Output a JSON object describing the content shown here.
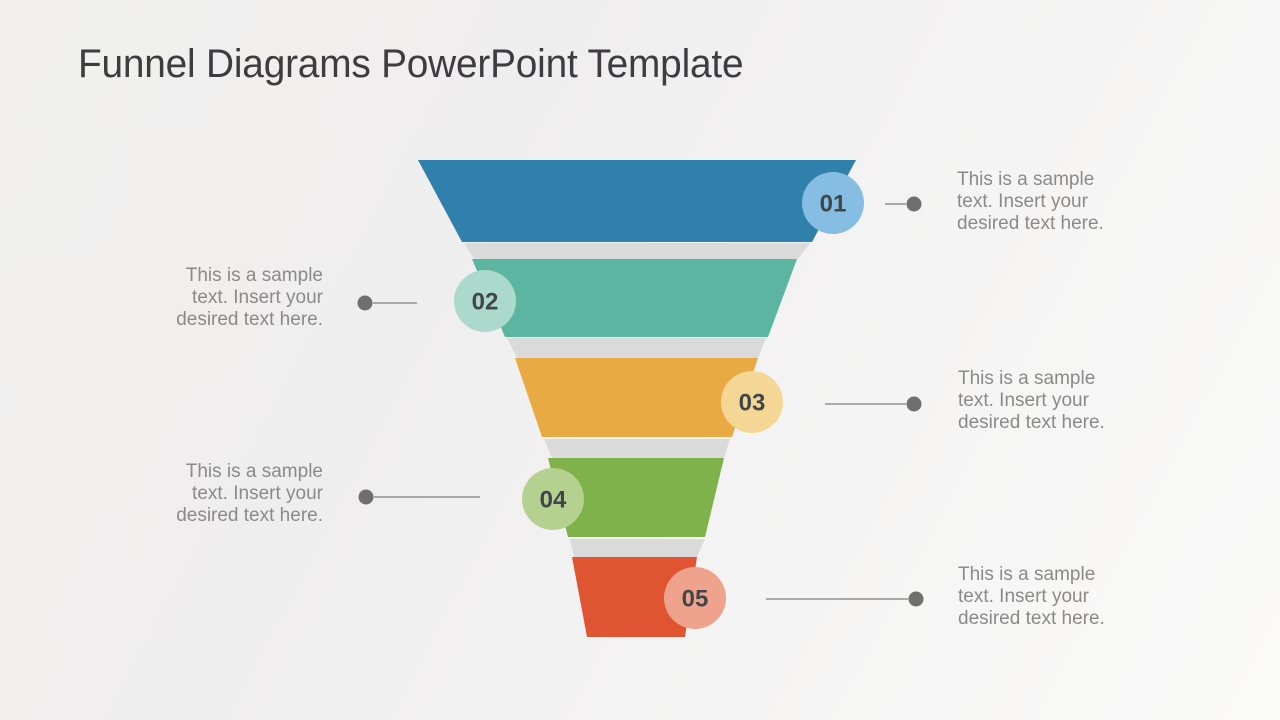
{
  "slide": {
    "title": "Funnel Diagrams PowerPoint Template"
  },
  "funnel": {
    "type": "funnel",
    "steps": [
      "01",
      "02",
      "03",
      "04",
      "05"
    ],
    "segments": [
      {
        "label": "01",
        "color": "#2f80ab",
        "badge_color": "#85bee2",
        "side": "right"
      },
      {
        "label": "02",
        "color": "#5bb5a1",
        "badge_color": "#abd9cb",
        "side": "left"
      },
      {
        "label": "03",
        "color": "#eaaa43",
        "badge_color": "#f5d795",
        "side": "right"
      },
      {
        "label": "04",
        "color": "#80b24b",
        "badge_color": "#b5d18f",
        "side": "left"
      },
      {
        "label": "05",
        "color": "#df5532",
        "badge_color": "#efa38d",
        "side": "right"
      }
    ],
    "fold_color": "#dbdada",
    "number_color": "#41464b"
  },
  "connectors": {
    "line_color": "#909090",
    "dot_color": "#6f6f6f"
  },
  "callouts": [
    {
      "side": "right",
      "lines": [
        "This is a sample",
        "text. Insert your",
        "desired text here."
      ]
    },
    {
      "side": "left",
      "lines": [
        "This is a sample",
        "text. Insert your",
        "desired text here."
      ]
    },
    {
      "side": "right",
      "lines": [
        "This is a sample",
        "text. Insert your",
        "desired text here."
      ]
    },
    {
      "side": "left",
      "lines": [
        "This is a sample",
        "text. Insert your",
        "desired text here."
      ]
    },
    {
      "side": "right",
      "lines": [
        "This is a sample",
        "text. Insert your",
        "desired text here."
      ]
    }
  ]
}
